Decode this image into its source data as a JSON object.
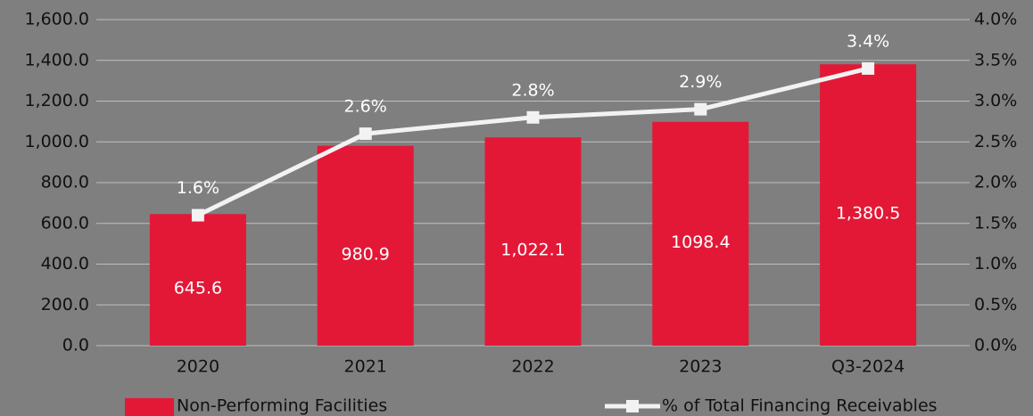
{
  "chart_data": {
    "type": "bar",
    "categories": [
      "2020",
      "2021",
      "2022",
      "2023",
      "Q3-2024"
    ],
    "series": [
      {
        "name": "Non-Performing Facilities",
        "type": "bar",
        "color": "#e31837",
        "values": [
          645.6,
          980.9,
          1022.1,
          1098.4,
          1380.5
        ],
        "value_labels": [
          "645.6",
          "980.9",
          "1,022.1",
          "1098.4",
          "1,380.5"
        ]
      },
      {
        "name": "% of Total Financing Receivables",
        "type": "line",
        "axis": "y2",
        "color": "#f2f2f2",
        "values": [
          1.6,
          2.6,
          2.8,
          2.9,
          3.4
        ],
        "value_labels": [
          "1.6%",
          "2.6%",
          "2.8%",
          "2.9%",
          "3.4%"
        ]
      }
    ],
    "ylim": [
      0,
      1600
    ],
    "yticks": [
      {
        "value": 0,
        "label": "0.0"
      },
      {
        "value": 200,
        "label": "200.0"
      },
      {
        "value": 400,
        "label": "400.0"
      },
      {
        "value": 600,
        "label": "600.0"
      },
      {
        "value": 800,
        "label": "800.0"
      },
      {
        "value": 1000,
        "label": "1,000.0"
      },
      {
        "value": 1200,
        "label": "1,200.0"
      },
      {
        "value": 1400,
        "label": "1,400.0"
      },
      {
        "value": 1600,
        "label": "1,600.0"
      }
    ],
    "y2lim": [
      0,
      4
    ],
    "y2ticks": [
      {
        "value": 0,
        "label": "0.0%"
      },
      {
        "value": 0.5,
        "label": "0.5%"
      },
      {
        "value": 1,
        "label": "1.0%"
      },
      {
        "value": 1.5,
        "label": "1.5%"
      },
      {
        "value": 2,
        "label": "2.0%"
      },
      {
        "value": 2.5,
        "label": "2.5%"
      },
      {
        "value": 3,
        "label": "3.0%"
      },
      {
        "value": 3.5,
        "label": "3.5%"
      },
      {
        "value": 4,
        "label": "4.0%"
      }
    ],
    "grid": true
  }
}
